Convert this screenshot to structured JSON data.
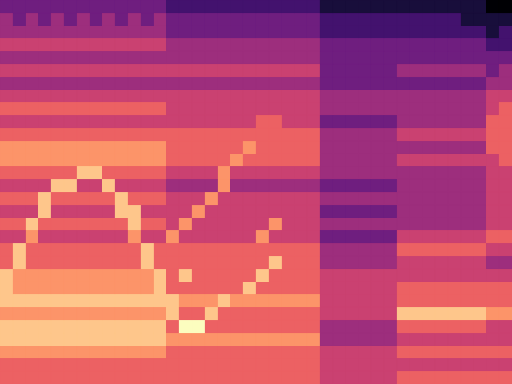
{
  "chart_data": {
    "type": "heatmap",
    "tick_labels": false,
    "cells": [
      [
        3,
        3,
        3,
        3,
        3,
        3,
        3,
        3,
        3,
        3,
        3,
        3,
        3,
        2,
        2,
        2,
        2,
        2,
        2,
        2,
        2,
        2,
        2,
        2,
        2,
        1,
        1,
        1,
        1,
        1,
        1,
        1,
        1,
        1,
        1,
        1,
        1,
        1,
        0,
        0
      ],
      [
        4,
        3,
        4,
        3,
        4,
        3,
        4,
        3,
        4,
        3,
        4,
        3,
        4,
        3,
        3,
        3,
        3,
        3,
        3,
        3,
        3,
        3,
        3,
        3,
        3,
        2,
        2,
        2,
        2,
        2,
        2,
        2,
        2,
        2,
        2,
        2,
        1,
        1,
        1,
        1
      ],
      [
        4,
        4,
        4,
        4,
        4,
        4,
        4,
        4,
        4,
        4,
        4,
        4,
        4,
        3,
        3,
        3,
        3,
        3,
        3,
        3,
        3,
        3,
        3,
        3,
        3,
        2,
        2,
        2,
        2,
        2,
        2,
        2,
        2,
        2,
        2,
        2,
        2,
        2,
        1,
        2
      ],
      [
        5,
        5,
        5,
        5,
        5,
        5,
        5,
        5,
        5,
        5,
        5,
        5,
        5,
        4,
        4,
        4,
        4,
        4,
        4,
        4,
        4,
        4,
        4,
        4,
        4,
        3,
        3,
        3,
        3,
        3,
        3,
        3,
        3,
        3,
        3,
        3,
        3,
        3,
        2,
        2
      ],
      [
        4,
        4,
        4,
        4,
        4,
        4,
        4,
        4,
        4,
        4,
        4,
        4,
        4,
        4,
        4,
        4,
        4,
        4,
        4,
        4,
        4,
        4,
        4,
        4,
        4,
        3,
        3,
        3,
        3,
        3,
        3,
        3,
        3,
        3,
        3,
        3,
        3,
        3,
        3,
        3
      ],
      [
        5,
        5,
        5,
        5,
        5,
        5,
        5,
        5,
        5,
        5,
        5,
        5,
        5,
        5,
        5,
        5,
        5,
        5,
        5,
        5,
        5,
        5,
        5,
        5,
        5,
        3,
        3,
        3,
        3,
        3,
        3,
        4,
        4,
        4,
        4,
        4,
        4,
        4,
        3,
        4
      ],
      [
        4,
        4,
        4,
        4,
        4,
        4,
        4,
        4,
        4,
        4,
        4,
        4,
        4,
        4,
        4,
        4,
        4,
        4,
        4,
        4,
        4,
        4,
        4,
        4,
        4,
        3,
        3,
        3,
        3,
        3,
        3,
        3,
        3,
        3,
        3,
        3,
        3,
        3,
        4,
        4
      ],
      [
        5,
        5,
        5,
        5,
        5,
        5,
        5,
        5,
        5,
        5,
        5,
        5,
        5,
        5,
        5,
        5,
        5,
        5,
        5,
        5,
        5,
        5,
        5,
        5,
        5,
        4,
        4,
        4,
        4,
        4,
        4,
        4,
        4,
        4,
        4,
        4,
        4,
        4,
        5,
        5
      ],
      [
        6,
        6,
        6,
        6,
        6,
        6,
        6,
        6,
        6,
        6,
        6,
        6,
        6,
        5,
        5,
        5,
        5,
        5,
        5,
        5,
        5,
        5,
        5,
        5,
        5,
        4,
        4,
        4,
        4,
        4,
        4,
        4,
        4,
        4,
        4,
        4,
        4,
        4,
        5,
        6
      ],
      [
        5,
        5,
        5,
        5,
        5,
        5,
        5,
        5,
        5,
        5,
        5,
        5,
        5,
        5,
        5,
        5,
        5,
        5,
        5,
        5,
        6,
        6,
        5,
        5,
        5,
        3,
        3,
        3,
        3,
        3,
        3,
        4,
        4,
        4,
        4,
        4,
        4,
        4,
        6,
        6
      ],
      [
        6,
        6,
        6,
        6,
        6,
        6,
        6,
        6,
        6,
        6,
        6,
        6,
        6,
        6,
        6,
        6,
        6,
        6,
        6,
        6,
        6,
        6,
        6,
        6,
        6,
        4,
        4,
        4,
        4,
        4,
        4,
        5,
        5,
        5,
        5,
        5,
        5,
        5,
        6,
        6
      ],
      [
        7,
        7,
        7,
        7,
        7,
        7,
        7,
        7,
        7,
        7,
        7,
        7,
        7,
        6,
        6,
        6,
        6,
        6,
        6,
        7,
        6,
        6,
        6,
        6,
        6,
        4,
        4,
        4,
        4,
        4,
        4,
        4,
        4,
        4,
        4,
        4,
        4,
        4,
        6,
        6
      ],
      [
        7,
        7,
        7,
        7,
        7,
        7,
        7,
        7,
        7,
        7,
        7,
        7,
        7,
        6,
        6,
        6,
        6,
        6,
        7,
        6,
        6,
        6,
        6,
        6,
        6,
        4,
        4,
        4,
        4,
        4,
        4,
        5,
        5,
        5,
        5,
        5,
        5,
        5,
        5,
        6
      ],
      [
        6,
        6,
        6,
        6,
        6,
        6,
        8,
        8,
        6,
        6,
        6,
        6,
        6,
        5,
        5,
        5,
        5,
        7,
        5,
        5,
        5,
        5,
        5,
        5,
        5,
        4,
        4,
        4,
        4,
        4,
        4,
        4,
        4,
        4,
        4,
        4,
        4,
        4,
        5,
        5
      ],
      [
        5,
        5,
        5,
        5,
        8,
        8,
        5,
        5,
        8,
        5,
        5,
        5,
        5,
        4,
        4,
        4,
        4,
        7,
        4,
        4,
        4,
        4,
        4,
        4,
        4,
        3,
        3,
        3,
        3,
        3,
        3,
        4,
        4,
        4,
        4,
        4,
        4,
        4,
        5,
        5
      ],
      [
        6,
        6,
        6,
        8,
        6,
        6,
        6,
        6,
        6,
        8,
        6,
        6,
        6,
        5,
        5,
        5,
        7,
        5,
        5,
        5,
        5,
        5,
        5,
        5,
        5,
        4,
        4,
        4,
        4,
        4,
        4,
        4,
        4,
        4,
        4,
        4,
        4,
        4,
        5,
        5
      ],
      [
        5,
        5,
        5,
        8,
        5,
        5,
        5,
        5,
        5,
        8,
        8,
        5,
        5,
        5,
        5,
        7,
        5,
        5,
        5,
        5,
        5,
        5,
        5,
        5,
        5,
        3,
        3,
        3,
        3,
        3,
        3,
        4,
        4,
        4,
        4,
        4,
        4,
        4,
        5,
        5
      ],
      [
        6,
        6,
        8,
        6,
        6,
        6,
        6,
        6,
        6,
        6,
        8,
        6,
        6,
        5,
        7,
        5,
        5,
        5,
        5,
        5,
        5,
        7,
        5,
        5,
        5,
        4,
        4,
        4,
        4,
        4,
        4,
        4,
        4,
        4,
        4,
        4,
        4,
        4,
        5,
        5
      ],
      [
        5,
        5,
        7,
        5,
        5,
        5,
        5,
        5,
        5,
        5,
        7,
        5,
        5,
        7,
        5,
        5,
        5,
        5,
        5,
        5,
        7,
        5,
        5,
        5,
        5,
        3,
        3,
        3,
        3,
        3,
        3,
        5,
        5,
        5,
        5,
        5,
        5,
        5,
        6,
        6
      ],
      [
        6,
        8,
        6,
        6,
        6,
        6,
        6,
        6,
        6,
        6,
        6,
        8,
        6,
        6,
        6,
        6,
        6,
        6,
        6,
        6,
        6,
        6,
        6,
        6,
        6,
        4,
        4,
        4,
        4,
        4,
        4,
        6,
        6,
        6,
        6,
        6,
        6,
        6,
        5,
        5
      ],
      [
        6,
        8,
        6,
        6,
        6,
        6,
        6,
        6,
        6,
        6,
        6,
        8,
        6,
        6,
        6,
        6,
        6,
        6,
        6,
        6,
        6,
        8,
        6,
        6,
        6,
        4,
        4,
        4,
        4,
        4,
        4,
        5,
        5,
        5,
        5,
        5,
        5,
        5,
        4,
        4
      ],
      [
        8,
        7,
        7,
        7,
        7,
        7,
        7,
        7,
        7,
        7,
        7,
        7,
        8,
        6,
        8,
        6,
        6,
        6,
        6,
        6,
        8,
        6,
        6,
        6,
        6,
        5,
        5,
        5,
        5,
        5,
        5,
        5,
        5,
        5,
        5,
        5,
        5,
        5,
        5,
        5
      ],
      [
        8,
        7,
        7,
        7,
        7,
        7,
        7,
        7,
        7,
        7,
        7,
        7,
        8,
        6,
        6,
        6,
        6,
        6,
        6,
        8,
        6,
        6,
        6,
        6,
        6,
        5,
        5,
        5,
        5,
        5,
        5,
        6,
        6,
        6,
        6,
        6,
        6,
        6,
        6,
        6
      ],
      [
        8,
        8,
        8,
        8,
        8,
        8,
        8,
        8,
        8,
        8,
        8,
        8,
        8,
        8,
        7,
        7,
        7,
        8,
        7,
        7,
        7,
        7,
        7,
        7,
        7,
        5,
        5,
        5,
        5,
        5,
        5,
        6,
        6,
        6,
        6,
        6,
        6,
        6,
        6,
        6
      ],
      [
        7,
        7,
        7,
        7,
        7,
        7,
        7,
        7,
        7,
        7,
        7,
        7,
        7,
        8,
        6,
        6,
        8,
        6,
        6,
        6,
        6,
        6,
        6,
        6,
        6,
        5,
        5,
        5,
        5,
        5,
        5,
        8,
        8,
        8,
        8,
        8,
        8,
        8,
        7,
        7
      ],
      [
        8,
        8,
        8,
        8,
        8,
        8,
        8,
        8,
        8,
        8,
        8,
        8,
        8,
        6,
        9,
        9,
        6,
        6,
        6,
        6,
        6,
        6,
        6,
        6,
        6,
        4,
        4,
        4,
        4,
        4,
        4,
        6,
        6,
        6,
        6,
        6,
        6,
        6,
        5,
        5
      ],
      [
        8,
        8,
        8,
        8,
        8,
        8,
        8,
        8,
        8,
        8,
        8,
        8,
        8,
        7,
        7,
        7,
        7,
        7,
        7,
        7,
        7,
        7,
        7,
        7,
        7,
        4,
        4,
        4,
        4,
        4,
        4,
        5,
        5,
        5,
        5,
        5,
        5,
        5,
        5,
        5
      ],
      [
        7,
        7,
        7,
        7,
        7,
        7,
        7,
        7,
        7,
        7,
        7,
        7,
        7,
        6,
        6,
        6,
        6,
        6,
        6,
        6,
        6,
        6,
        6,
        6,
        6,
        5,
        5,
        5,
        5,
        5,
        5,
        6,
        6,
        6,
        6,
        6,
        6,
        6,
        6,
        6
      ],
      [
        6,
        6,
        6,
        6,
        6,
        6,
        6,
        6,
        6,
        6,
        6,
        6,
        6,
        6,
        6,
        6,
        6,
        6,
        6,
        6,
        6,
        6,
        6,
        6,
        6,
        5,
        5,
        5,
        5,
        5,
        5,
        5,
        5,
        5,
        5,
        5,
        5,
        5,
        5,
        5
      ],
      [
        6,
        6,
        6,
        6,
        6,
        6,
        6,
        6,
        6,
        6,
        6,
        6,
        6,
        6,
        6,
        6,
        6,
        6,
        6,
        6,
        6,
        6,
        6,
        6,
        6,
        5,
        5,
        5,
        5,
        5,
        5,
        6,
        6,
        6,
        6,
        6,
        6,
        6,
        6,
        6
      ]
    ]
  }
}
